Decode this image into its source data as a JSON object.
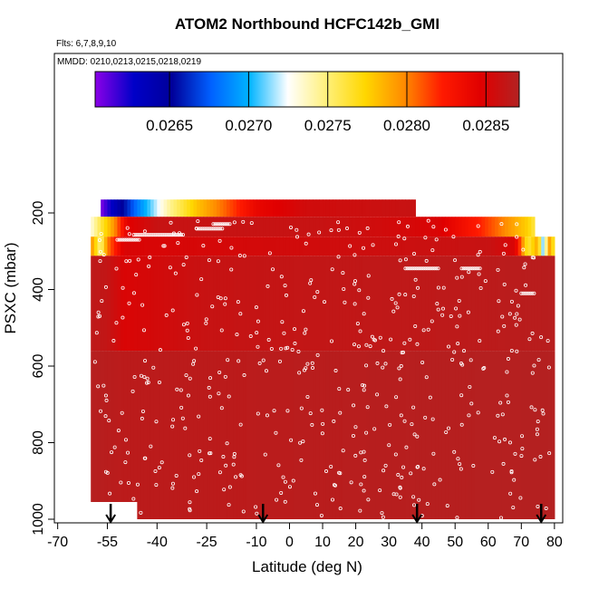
{
  "chart_data": {
    "type": "heatmap",
    "title": "ATOM2 Northbound HCFC142b_GMI",
    "flights_label": "Flts: 6,7,8,9,10",
    "mmdd_label": "MMDD: 0210,0213,0215,0218,0219",
    "xlabel": "Latitude (deg N)",
    "ylabel": "PSXC (mbar)",
    "x_ticks": [
      {
        "value": -70,
        "label": "-70"
      },
      {
        "value": -55,
        "label": "-55"
      },
      {
        "value": -40,
        "label": "-40"
      },
      {
        "value": -25,
        "label": "-25"
      },
      {
        "value": -10,
        "label": "-10"
      },
      {
        "value": 0,
        "label": "0"
      },
      {
        "value": 10,
        "label": "10"
      },
      {
        "value": 20,
        "label": "20"
      },
      {
        "value": 30,
        "label": "30"
      },
      {
        "value": 40,
        "label": "40"
      },
      {
        "value": 50,
        "label": "50"
      },
      {
        "value": 60,
        "label": "60"
      },
      {
        "value": 70,
        "label": "70"
      },
      {
        "value": 80,
        "label": "80"
      }
    ],
    "y_ticks": [
      {
        "value": 200,
        "label": "200"
      },
      {
        "value": 400,
        "label": "400"
      },
      {
        "value": 600,
        "label": "600"
      },
      {
        "value": 800,
        "label": "800"
      },
      {
        "value": 1000,
        "label": "1000"
      }
    ],
    "y_inverted": true,
    "colorbar": {
      "ticks": [
        {
          "value": 0.0265,
          "label": "0.0265"
        },
        {
          "value": 0.027,
          "label": "0.0270"
        },
        {
          "value": 0.0275,
          "label": "0.0275"
        },
        {
          "value": 0.028,
          "label": "0.0280"
        },
        {
          "value": 0.0285,
          "label": "0.0285"
        }
      ],
      "range": [
        0.02603,
        0.02871
      ],
      "colors": [
        "#8b00e8",
        "#0000c8",
        "#00009a",
        "#0060ff",
        "#00b4ff",
        "#ffffff",
        "#fff07a",
        "#ffd700",
        "#ff8c00",
        "#ff1a00",
        "#e00000",
        "#b22222"
      ]
    },
    "field_regions": [
      {
        "lat": [
          -57,
          38
        ],
        "p": [
          165,
          210
        ],
        "kind": "gradient",
        "stops": [
          {
            "lat": -57,
            "value": 0.02605
          },
          {
            "lat": -52,
            "value": 0.0264
          },
          {
            "lat": -45,
            "value": 0.0269
          },
          {
            "lat": -36,
            "value": 0.02745
          },
          {
            "lat": -28,
            "value": 0.0278
          },
          {
            "lat": -20,
            "value": 0.02805
          },
          {
            "lat": -10,
            "value": 0.0284
          },
          {
            "lat": 5,
            "value": 0.02855
          },
          {
            "lat": 38,
            "value": 0.0286
          }
        ]
      },
      {
        "lat": [
          -60,
          74
        ],
        "p": [
          210,
          262
        ],
        "kind": "gradient",
        "stops": [
          {
            "lat": -60,
            "value": 0.0273
          },
          {
            "lat": -57,
            "value": 0.0276
          },
          {
            "lat": -53,
            "value": 0.02795
          },
          {
            "lat": -49,
            "value": 0.02845
          },
          {
            "lat": -40,
            "value": 0.0286
          },
          {
            "lat": 10,
            "value": 0.0286
          },
          {
            "lat": 45,
            "value": 0.0285
          },
          {
            "lat": 58,
            "value": 0.0282
          },
          {
            "lat": 66,
            "value": 0.02795
          },
          {
            "lat": 72,
            "value": 0.02775
          },
          {
            "lat": 74,
            "value": 0.0276
          }
        ]
      },
      {
        "lat": [
          -60,
          80
        ],
        "p": [
          262,
          312
        ],
        "kind": "gradient",
        "stops": [
          {
            "lat": -60,
            "value": 0.028
          },
          {
            "lat": -57,
            "value": 0.02745
          },
          {
            "lat": -55,
            "value": 0.028
          },
          {
            "lat": -50,
            "value": 0.0285
          },
          {
            "lat": 60,
            "value": 0.0286
          },
          {
            "lat": 68,
            "value": 0.0285
          },
          {
            "lat": 72,
            "value": 0.0276
          },
          {
            "lat": 75,
            "value": 0.0279
          },
          {
            "lat": 77,
            "value": 0.0269
          },
          {
            "lat": 78,
            "value": 0.028
          },
          {
            "lat": 80,
            "value": 0.0276
          }
        ]
      },
      {
        "lat": [
          -60,
          80
        ],
        "p": [
          312,
          560
        ],
        "kind": "gradient",
        "stops": [
          {
            "lat": -60,
            "value": 0.02865
          },
          {
            "lat": -55,
            "value": 0.02862
          },
          {
            "lat": -50,
            "value": 0.0285
          },
          {
            "lat": -25,
            "value": 0.0286
          },
          {
            "lat": 0,
            "value": 0.02862
          },
          {
            "lat": 30,
            "value": 0.02864
          },
          {
            "lat": 60,
            "value": 0.02866
          },
          {
            "lat": 80,
            "value": 0.02868
          }
        ]
      },
      {
        "lat": [
          -60,
          80
        ],
        "p": [
          560,
          1000
        ],
        "kind": "gradient",
        "stops": [
          {
            "lat": -60,
            "value": 0.02869
          },
          {
            "lat": -50,
            "value": 0.02866
          },
          {
            "lat": -20,
            "value": 0.02866
          },
          {
            "lat": 20,
            "value": 0.02868
          },
          {
            "lat": 80,
            "value": 0.0287
          }
        ]
      }
    ],
    "blank_regions": [
      {
        "lat": [
          -60,
          -46
        ],
        "p": [
          955,
          1000
        ]
      }
    ],
    "flight_markers_lat": [
      -54,
      -8,
      38.5,
      76
    ]
  }
}
